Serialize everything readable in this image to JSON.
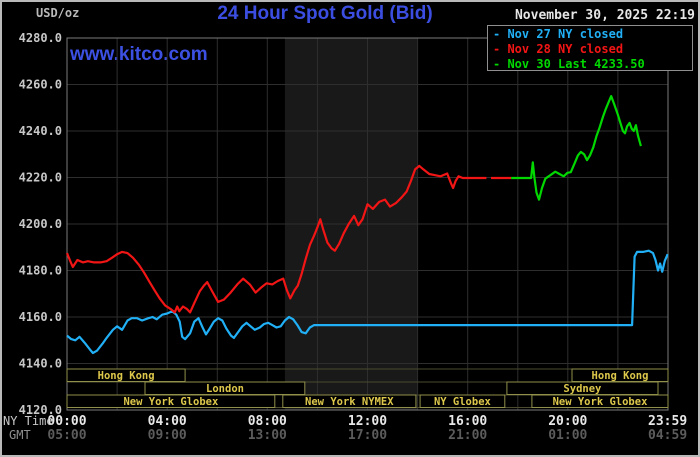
{
  "header": {
    "unit": "USD/oz",
    "title": "24 Hour Spot Gold (Bid)",
    "datetime": "November 30, 2025 22:19",
    "watermark": "www.kitco.com"
  },
  "legend": {
    "items": [
      {
        "marker": "-",
        "text": "Nov 27 NY closed",
        "color": "#21b0f5"
      },
      {
        "marker": "-",
        "text": "Nov 28 NY closed",
        "color": "#f21515"
      },
      {
        "marker": "-",
        "text": "Nov 30 Last 4233.50",
        "color": "#00d800"
      }
    ]
  },
  "sessions": {
    "rows": [
      {
        "boxes": [
          {
            "label": "Hong Kong",
            "start": 0,
            "end": 283
          },
          {
            "label": "Hong Kong",
            "start": 1210,
            "end": 1440
          }
        ]
      },
      {
        "boxes": [
          {
            "label": "London",
            "start": 187,
            "end": 570
          },
          {
            "label": "Sydney",
            "start": 1054,
            "end": 1416
          }
        ]
      },
      {
        "boxes": [
          {
            "label": "New York Globex",
            "start": 0,
            "end": 498
          },
          {
            "label": "New York NYMEX",
            "start": 517,
            "end": 836
          },
          {
            "label": "NY Globex",
            "start": 846,
            "end": 1049
          },
          {
            "label": "New York Globex",
            "start": 1114,
            "end": 1440
          }
        ]
      }
    ],
    "border_color": "#90904a",
    "text_color": "#ddc84b"
  },
  "chart_data": {
    "type": "line",
    "title": "24 Hour Spot Gold (Bid)",
    "ylabel": "USD/oz",
    "grid": true,
    "legend_position": "top-right",
    "y_axis": {
      "min": 4120,
      "max": 4280,
      "tick_step": 20,
      "tick_labels": [
        "4280.0",
        "4260.0",
        "4240.0",
        "4220.0",
        "4200.0",
        "4180.0",
        "4160.0",
        "4140.0",
        "4120.0"
      ]
    },
    "x_axis": {
      "label_ny": "NY Time",
      "label_gmt": "GMT",
      "range_minutes": [
        0,
        1440
      ],
      "tick_minutes": [
        0,
        240,
        480,
        720,
        960,
        1200,
        1439
      ],
      "ny_ticks": [
        "00:00",
        "04:00",
        "08:00",
        "12:00",
        "16:00",
        "20:00",
        "23:59"
      ],
      "gmt_ticks": [
        "05:00",
        "09:00",
        "13:00",
        "17:00",
        "21:00",
        "01:00",
        "04:59"
      ]
    },
    "nymex_band_minutes": [
      522,
      839
    ],
    "band_color": "#191919",
    "series": [
      {
        "name": "Nov 27",
        "legend": "Nov 27 NY closed",
        "color": "#21b0f5",
        "segments": [
          [
            [
              0,
              4152
            ],
            [
              10,
              4150.5
            ],
            [
              20,
              4150
            ],
            [
              30,
              4151.5
            ],
            [
              42,
              4149
            ],
            [
              55,
              4146
            ],
            [
              62,
              4144.5
            ],
            [
              72,
              4145.5
            ],
            [
              85,
              4148.5
            ],
            [
              95,
              4151
            ],
            [
              110,
              4154.5
            ],
            [
              120,
              4156
            ],
            [
              132,
              4154.5
            ],
            [
              145,
              4158.5
            ],
            [
              155,
              4159.5
            ],
            [
              168,
              4159.5
            ],
            [
              180,
              4158.5
            ],
            [
              195,
              4159.5
            ],
            [
              205,
              4160
            ],
            [
              215,
              4159
            ],
            [
              228,
              4161
            ],
            [
              240,
              4161.5
            ],
            [
              252,
              4162.5
            ],
            [
              262,
              4161
            ],
            [
              270,
              4158
            ],
            [
              276,
              4151.5
            ],
            [
              283,
              4150.5
            ],
            [
              295,
              4153
            ],
            [
              305,
              4158
            ],
            [
              315,
              4159.5
            ],
            [
              325,
              4155.5
            ],
            [
              333,
              4152.5
            ],
            [
              342,
              4155
            ],
            [
              352,
              4158
            ],
            [
              362,
              4159.5
            ],
            [
              372,
              4158.5
            ],
            [
              382,
              4155
            ],
            [
              393,
              4152
            ],
            [
              400,
              4151
            ],
            [
              410,
              4153.5
            ],
            [
              420,
              4156
            ],
            [
              430,
              4157.5
            ],
            [
              440,
              4156
            ],
            [
              450,
              4154.5
            ],
            [
              462,
              4155.5
            ],
            [
              472,
              4157
            ],
            [
              482,
              4157.5
            ],
            [
              492,
              4156.5
            ],
            [
              502,
              4155.5
            ],
            [
              512,
              4156
            ],
            [
              522,
              4158.5
            ],
            [
              532,
              4160
            ],
            [
              542,
              4159
            ],
            [
              552,
              4156.5
            ],
            [
              562,
              4153.5
            ],
            [
              572,
              4153
            ],
            [
              582,
              4155.5
            ],
            [
              592,
              4156.5
            ],
            [
              605,
              4156.5
            ],
            [
              760,
              4156.5
            ],
            [
              900,
              4156.5
            ],
            [
              1050,
              4156.5
            ],
            [
              1200,
              4156.5
            ],
            [
              1354,
              4156.5
            ],
            [
              1357,
              4172
            ],
            [
              1360,
              4186
            ],
            [
              1366,
              4188
            ],
            [
              1380,
              4188
            ],
            [
              1394,
              4188.5
            ],
            [
              1404,
              4187.5
            ],
            [
              1410,
              4184.5
            ],
            [
              1416,
              4180
            ],
            [
              1421,
              4183
            ],
            [
              1426,
              4179.5
            ],
            [
              1432,
              4184
            ],
            [
              1439,
              4187
            ]
          ]
        ]
      },
      {
        "name": "Nov 28",
        "legend": "Nov 28 NY closed",
        "color": "#f21515",
        "segments": [
          [
            [
              0,
              4187.5
            ],
            [
              8,
              4184
            ],
            [
              14,
              4181.5
            ],
            [
              25,
              4184.5
            ],
            [
              38,
              4183.5
            ],
            [
              50,
              4184
            ],
            [
              65,
              4183.5
            ],
            [
              80,
              4183.5
            ],
            [
              95,
              4184
            ],
            [
              108,
              4185.5
            ],
            [
              120,
              4187
            ],
            [
              132,
              4188
            ],
            [
              145,
              4187.5
            ],
            [
              158,
              4185.5
            ],
            [
              172,
              4182.5
            ],
            [
              185,
              4179
            ],
            [
              198,
              4175
            ],
            [
              210,
              4171.5
            ],
            [
              222,
              4168
            ],
            [
              235,
              4165
            ],
            [
              248,
              4163.5
            ],
            [
              258,
              4162
            ],
            [
              264,
              4164.5
            ],
            [
              269,
              4162.5
            ],
            [
              278,
              4164.5
            ],
            [
              287,
              4163.5
            ],
            [
              295,
              4162
            ],
            [
              305,
              4166
            ],
            [
              318,
              4171
            ],
            [
              328,
              4173.5
            ],
            [
              336,
              4175
            ],
            [
              348,
              4171
            ],
            [
              362,
              4166.5
            ],
            [
              376,
              4167.5
            ],
            [
              392,
              4170.5
            ],
            [
              408,
              4174
            ],
            [
              422,
              4176.5
            ],
            [
              438,
              4174
            ],
            [
              452,
              4170.5
            ],
            [
              464,
              4172.5
            ],
            [
              478,
              4174.5
            ],
            [
              492,
              4174
            ],
            [
              505,
              4175.5
            ],
            [
              518,
              4176.5
            ],
            [
              527,
              4171.5
            ],
            [
              535,
              4168
            ],
            [
              545,
              4171.5
            ],
            [
              553,
              4173.5
            ],
            [
              562,
              4178.5
            ],
            [
              572,
              4185
            ],
            [
              582,
              4191
            ],
            [
              592,
              4195
            ],
            [
              601,
              4199
            ],
            [
              607,
              4202
            ],
            [
              614,
              4197.5
            ],
            [
              624,
              4192
            ],
            [
              634,
              4189.5
            ],
            [
              642,
              4188.5
            ],
            [
              652,
              4191.5
            ],
            [
              663,
              4196
            ],
            [
              675,
              4200
            ],
            [
              688,
              4203.5
            ],
            [
              698,
              4199.5
            ],
            [
              708,
              4202
            ],
            [
              720,
              4208.5
            ],
            [
              733,
              4206.5
            ],
            [
              748,
              4209.5
            ],
            [
              762,
              4210.5
            ],
            [
              774,
              4207.5
            ],
            [
              788,
              4209
            ],
            [
              802,
              4211.5
            ],
            [
              814,
              4214
            ],
            [
              824,
              4218.5
            ],
            [
              834,
              4223.5
            ],
            [
              844,
              4225
            ],
            [
              854,
              4223.5
            ],
            [
              868,
              4221.5
            ],
            [
              882,
              4221
            ],
            [
              895,
              4220.5
            ],
            [
              911,
              4221.7
            ],
            [
              920,
              4217.5
            ],
            [
              925,
              4215.5
            ],
            [
              931,
              4218.5
            ],
            [
              938,
              4220.5
            ],
            [
              948,
              4219.8
            ],
            [
              975,
              4219.8
            ],
            [
              1005,
              4219.8
            ]
          ],
          [
            [
              1016,
              4219.8
            ],
            [
              1040,
              4219.8
            ],
            [
              1064,
              4219.8
            ]
          ]
        ]
      },
      {
        "name": "Nov 30",
        "legend": "Nov 30 Last 4233.50",
        "color": "#00d800",
        "last": 4233.5,
        "segments": [
          [
            [
              1064,
              4219.8
            ],
            [
              1090,
              4219.8
            ],
            [
              1112,
              4219.8
            ],
            [
              1116,
              4226.5
            ],
            [
              1120,
              4220
            ],
            [
              1125,
              4213.5
            ],
            [
              1131,
              4210.5
            ],
            [
              1138,
              4215.5
            ],
            [
              1146,
              4219.5
            ],
            [
              1158,
              4221
            ],
            [
              1170,
              4222.5
            ],
            [
              1180,
              4221.5
            ],
            [
              1190,
              4220.5
            ],
            [
              1199,
              4222
            ],
            [
              1207,
              4222.3
            ],
            [
              1216,
              4226
            ],
            [
              1224,
              4229.5
            ],
            [
              1231,
              4231
            ],
            [
              1239,
              4230
            ],
            [
              1246,
              4227.5
            ],
            [
              1253,
              4229.5
            ],
            [
              1261,
              4233
            ],
            [
              1269,
              4238
            ],
            [
              1276,
              4241.5
            ],
            [
              1284,
              4246
            ],
            [
              1291,
              4249.5
            ],
            [
              1298,
              4252.5
            ],
            [
              1304,
              4255
            ],
            [
              1311,
              4251.5
            ],
            [
              1319,
              4247.5
            ],
            [
              1326,
              4243.5
            ],
            [
              1332,
              4240
            ],
            [
              1337,
              4239
            ],
            [
              1342,
              4242
            ],
            [
              1348,
              4243.5
            ],
            [
              1353,
              4241
            ],
            [
              1358,
              4240
            ],
            [
              1363,
              4242.5
            ],
            [
              1368,
              4238
            ],
            [
              1372,
              4235.5
            ],
            [
              1375,
              4233.5
            ]
          ]
        ]
      }
    ]
  }
}
